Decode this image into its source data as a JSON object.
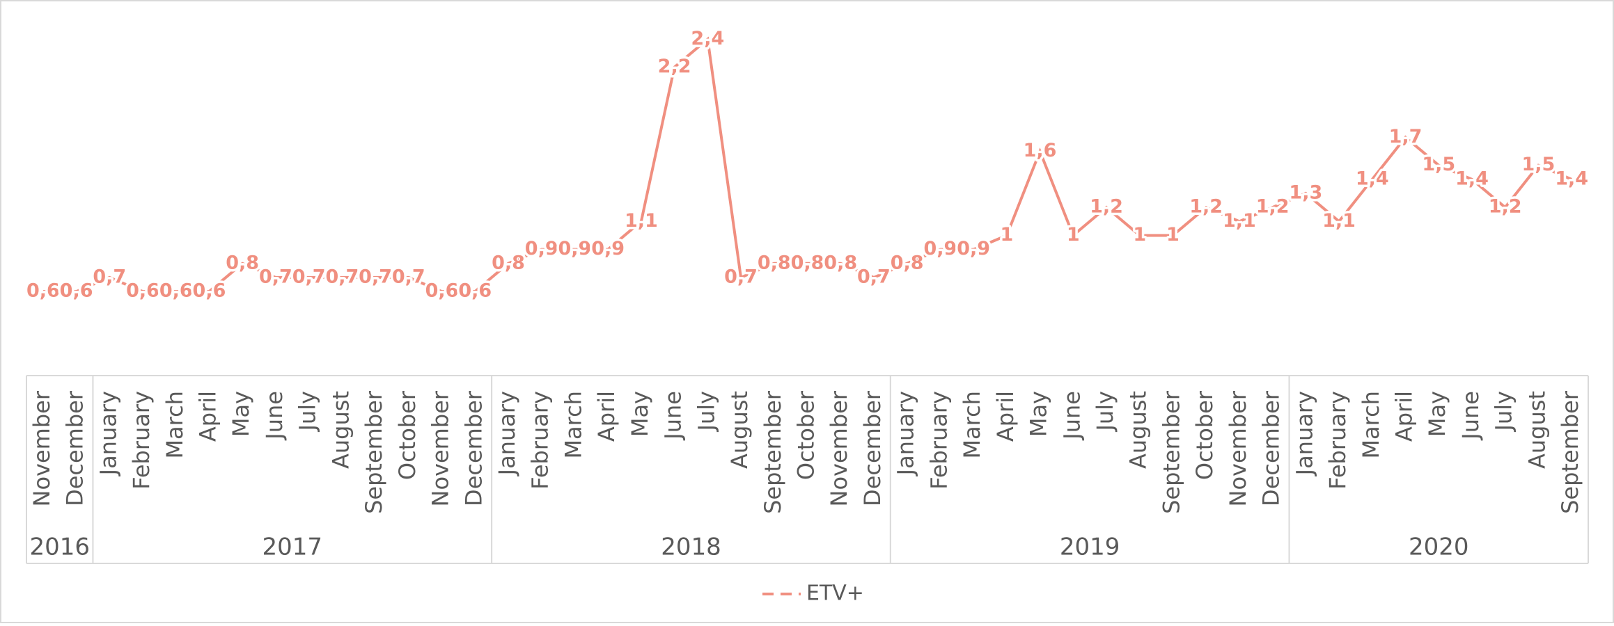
{
  "chart_data": {
    "type": "line",
    "groups": [
      {
        "name": "2016",
        "months": [
          "November",
          "December"
        ]
      },
      {
        "name": "2017",
        "months": [
          "January",
          "February",
          "March",
          "April",
          "May",
          "June",
          "July",
          "August",
          "September",
          "October",
          "November",
          "December"
        ]
      },
      {
        "name": "2018",
        "months": [
          "January",
          "February",
          "March",
          "April",
          "May",
          "June",
          "July",
          "August",
          "September",
          "October",
          "November",
          "December"
        ]
      },
      {
        "name": "2019",
        "months": [
          "January",
          "February",
          "March",
          "April",
          "May",
          "June",
          "July",
          "August",
          "September",
          "October",
          "November",
          "December"
        ]
      },
      {
        "name": "2020",
        "months": [
          "January",
          "February",
          "March",
          "April",
          "May",
          "June",
          "July",
          "August",
          "September"
        ]
      }
    ],
    "series": [
      {
        "name": "ETV+",
        "color": "#f08f80",
        "values": [
          0.6,
          0.6,
          0.7,
          0.6,
          0.6,
          0.6,
          0.8,
          0.7,
          0.7,
          0.7,
          0.7,
          0.7,
          0.6,
          0.6,
          0.8,
          0.9,
          0.9,
          0.9,
          1.1,
          2.2,
          2.4,
          0.7,
          0.8,
          0.8,
          0.8,
          0.7,
          0.8,
          0.9,
          0.9,
          1,
          1.6,
          1,
          1.2,
          1,
          1,
          1.2,
          1.1,
          1.2,
          1.3,
          1.1,
          1.4,
          1.7,
          1.5,
          1.4,
          1.2,
          1.5,
          1.4
        ],
        "value_labels": [
          "0,6",
          "0,6",
          "0,7",
          "0,6",
          "0,6",
          "0,6",
          "0,8",
          "0,7",
          "0,7",
          "0,7",
          "0,7",
          "0,7",
          "0,6",
          "0,6",
          "0,8",
          "0,9",
          "0,9",
          "0,9",
          "1,1",
          "2,2",
          "2,4",
          "0,7",
          "0,8",
          "0,8",
          "0,8",
          "0,7",
          "0,8",
          "0,9",
          "0,9",
          "1",
          "1,6",
          "1",
          "1,2",
          "1",
          "1",
          "1,2",
          "1,1",
          "1,2",
          "1,3",
          "1,1",
          "1,4",
          "1,7",
          "1,5",
          "1,4",
          "1,2",
          "1,5",
          "1,4"
        ]
      }
    ],
    "ylim": [
      0,
      2.6
    ]
  }
}
